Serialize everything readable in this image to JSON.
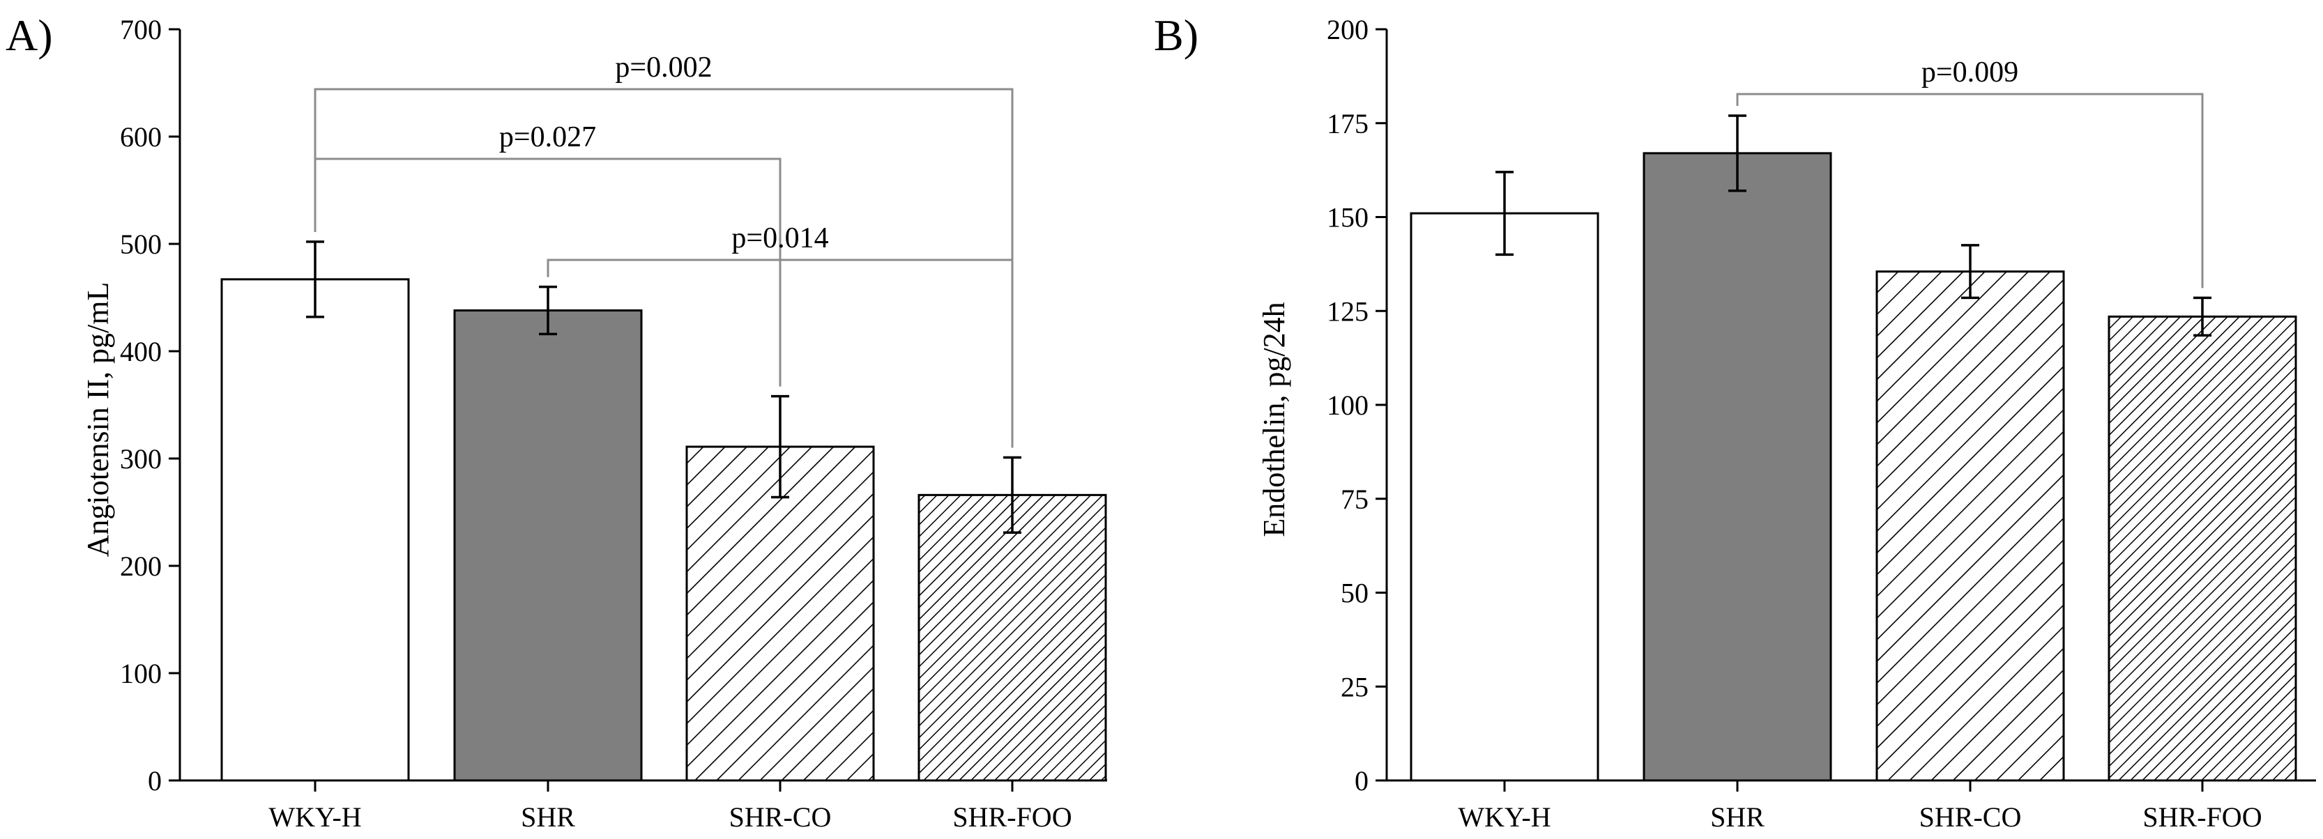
{
  "colors": {
    "axis": "#000000",
    "bar_outline": "#000000",
    "fill_white": "#ffffff",
    "fill_gray": "#7f7f7f",
    "bracket": "#8c8c8c",
    "hatch": "#000000"
  },
  "chart_data": [
    {
      "type": "bar",
      "panel_label": "A)",
      "title": "",
      "xlabel": "",
      "ylabel": "Angiotensin II, pg/mL",
      "ylim": [
        0,
        700
      ],
      "yticks": [
        0,
        100,
        200,
        300,
        400,
        500,
        600,
        700
      ],
      "categories": [
        "WKY-H",
        "SHR",
        "SHR-CO",
        "SHR-FOO"
      ],
      "values": [
        467,
        438,
        311,
        266
      ],
      "errors": [
        35,
        22,
        47,
        35
      ],
      "fills": [
        "white",
        "gray",
        "hatch-sparse",
        "hatch-dense"
      ],
      "grid": false,
      "legend": "none",
      "comparisons": [
        {
          "label": "p=0.002",
          "from": 0,
          "to": 3
        },
        {
          "label": "p=0.027",
          "from": 0,
          "to": 2
        },
        {
          "label": "p=0.014",
          "from": 1,
          "to": 3
        }
      ]
    },
    {
      "type": "bar",
      "panel_label": "B)",
      "title": "",
      "xlabel": "",
      "ylabel": "Endothelin, pg/24h",
      "ylim": [
        0,
        200
      ],
      "yticks": [
        0,
        25,
        50,
        75,
        100,
        125,
        150,
        175,
        200
      ],
      "categories": [
        "WKY-H",
        "SHR",
        "SHR-CO",
        "SHR-FOO"
      ],
      "values": [
        151,
        167,
        135.5,
        123.5
      ],
      "errors": [
        11,
        10,
        7,
        5
      ],
      "fills": [
        "white",
        "gray",
        "hatch-sparse",
        "hatch-dense"
      ],
      "grid": false,
      "legend": "none",
      "comparisons": [
        {
          "label": "p=0.009",
          "from": 1,
          "to": 3
        }
      ]
    }
  ]
}
